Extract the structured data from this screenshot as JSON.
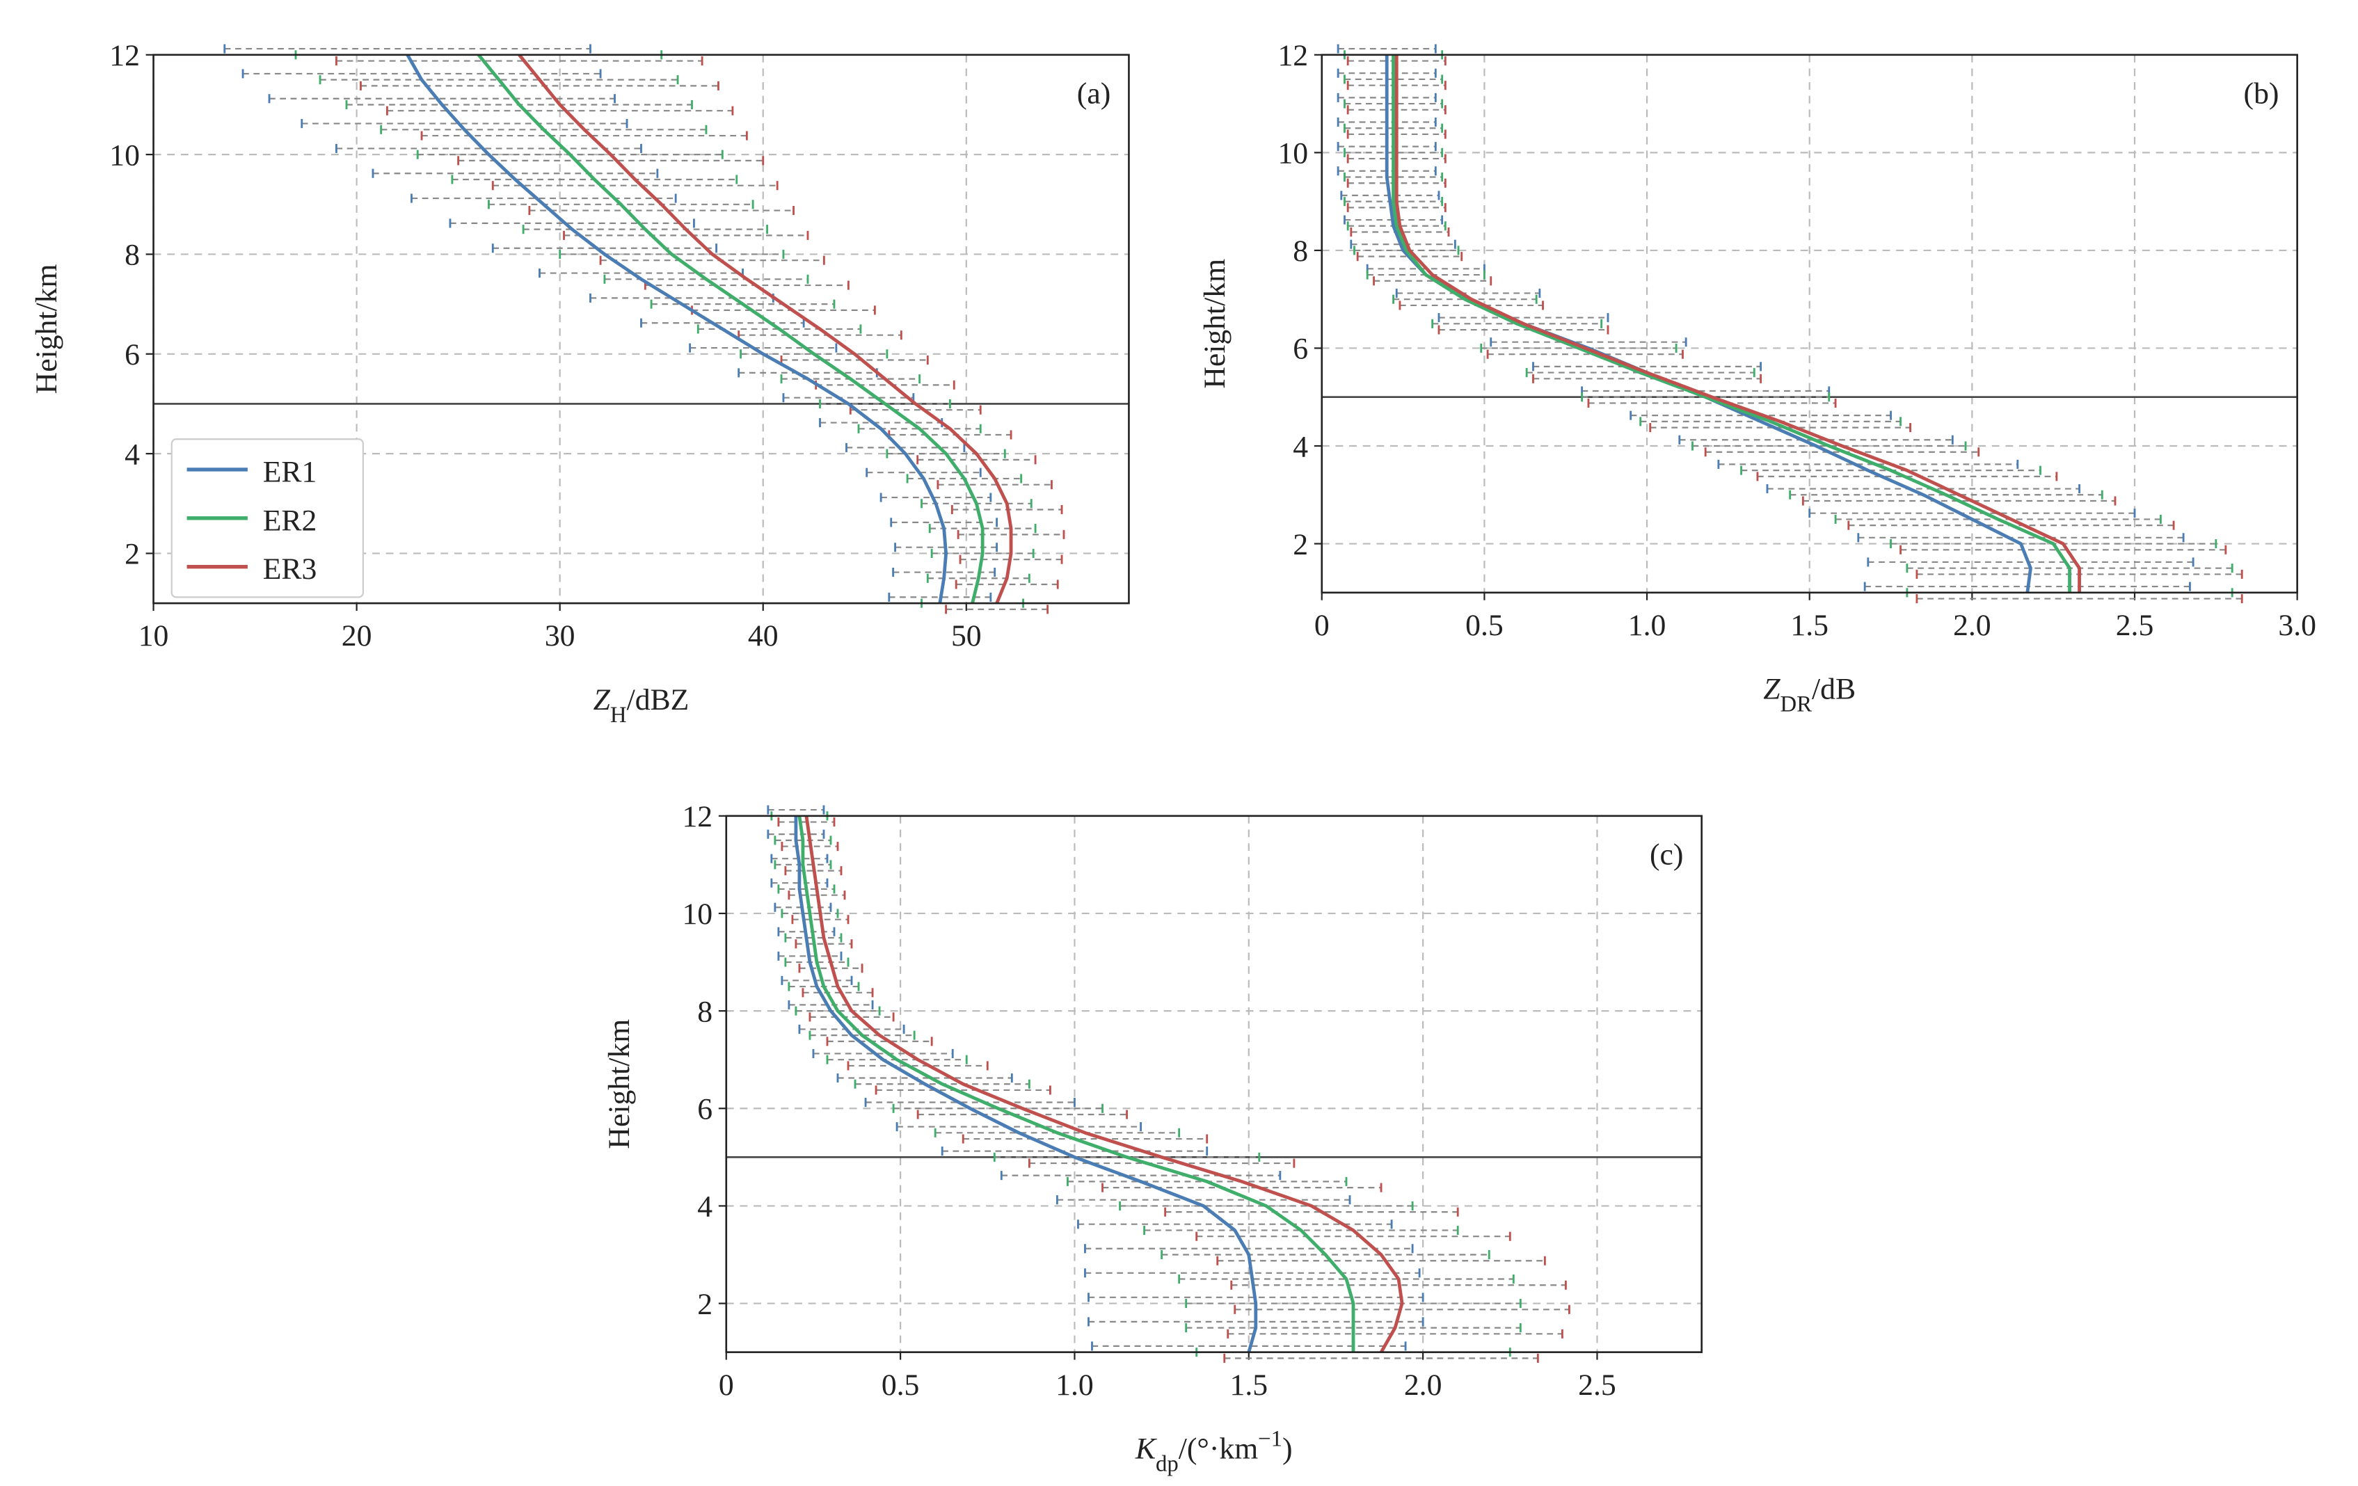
{
  "chart_data": [
    {
      "type": "line",
      "panel_label": "(a)",
      "xlabel": [
        {
          "text": "Z",
          "style": "italic"
        },
        {
          "text": "H",
          "style": "sub"
        },
        {
          "text": "/dBZ",
          "style": "normal"
        }
      ],
      "ylabel": "Height/km",
      "y": [
        1,
        1.5,
        2,
        2.5,
        3,
        3.5,
        4,
        4.5,
        5,
        5.5,
        6,
        6.5,
        7,
        7.5,
        8,
        8.5,
        9,
        9.5,
        10,
        10.5,
        11,
        11.5,
        12
      ],
      "series": [
        {
          "name": "ER1",
          "color": "#4b7db5",
          "values": [
            48.7,
            48.9,
            49,
            48.9,
            48.5,
            47.9,
            47,
            45.8,
            44.2,
            42.2,
            40,
            38,
            36,
            34,
            32.2,
            30.6,
            29.2,
            27.8,
            26.5,
            25.3,
            24.2,
            23.2,
            22.5
          ],
          "errors": [
            2.5,
            2.5,
            2.5,
            2.6,
            2.7,
            2.8,
            2.9,
            3,
            3.2,
            3.4,
            3.6,
            4,
            4.5,
            5,
            5.5,
            6,
            6.5,
            7,
            7.5,
            8,
            8.5,
            8.8,
            9
          ]
        },
        {
          "name": "ER2",
          "color": "#3fae6a",
          "values": [
            50.3,
            50.6,
            50.8,
            50.8,
            50.5,
            49.9,
            49,
            47.7,
            46,
            44.3,
            42.5,
            40.8,
            39,
            37.2,
            35.5,
            34.2,
            33,
            31.7,
            30.5,
            29.2,
            28,
            27,
            26
          ],
          "errors": [
            2.5,
            2.5,
            2.5,
            2.6,
            2.7,
            2.8,
            2.9,
            3,
            3.2,
            3.4,
            3.6,
            4,
            4.5,
            5,
            5.5,
            6,
            6.5,
            7,
            7.5,
            8,
            8.5,
            8.8,
            9
          ]
        },
        {
          "name": "ER3",
          "color": "#c0504d",
          "values": [
            51.5,
            52,
            52.2,
            52.2,
            52,
            51.4,
            50.5,
            49.2,
            47.5,
            46,
            44.5,
            42.8,
            41,
            39.2,
            37.5,
            36.2,
            35,
            33.7,
            32.5,
            31.2,
            30,
            29,
            28
          ],
          "errors": [
            2.5,
            2.5,
            2.5,
            2.6,
            2.7,
            2.8,
            2.9,
            3,
            3.2,
            3.4,
            3.6,
            4,
            4.5,
            5,
            5.5,
            6,
            6.5,
            7,
            7.5,
            8,
            8.5,
            8.8,
            9
          ]
        }
      ],
      "xlim": [
        10,
        58
      ],
      "xticks": [
        10,
        20,
        30,
        40,
        50
      ],
      "ylim": [
        1,
        12
      ],
      "yticks": [
        2,
        4,
        6,
        8,
        10,
        12
      ],
      "grid": true,
      "hline": 5,
      "legend": "lower left"
    },
    {
      "type": "line",
      "panel_label": "(b)",
      "xlabel": [
        {
          "text": "Z",
          "style": "italic"
        },
        {
          "text": "DR",
          "style": "sub"
        },
        {
          "text": "/dB",
          "style": "normal"
        }
      ],
      "ylabel": "Height/km",
      "y": [
        1,
        1.5,
        2,
        2.5,
        3,
        3.5,
        4,
        4.5,
        5,
        5.5,
        6,
        6.5,
        7,
        7.5,
        8,
        8.5,
        9,
        9.5,
        10,
        10.5,
        11,
        11.5,
        12
      ],
      "series": [
        {
          "color": "#4b7db5",
          "values": [
            2.17,
            2.18,
            2.15,
            2.0,
            1.85,
            1.68,
            1.52,
            1.35,
            1.18,
            1.0,
            0.82,
            0.62,
            0.45,
            0.32,
            0.25,
            0.22,
            0.21,
            0.2,
            0.2,
            0.2,
            0.2,
            0.2,
            0.2
          ],
          "errors": [
            0.5,
            0.5,
            0.5,
            0.5,
            0.48,
            0.46,
            0.42,
            0.4,
            0.38,
            0.35,
            0.3,
            0.26,
            0.22,
            0.18,
            0.16,
            0.15,
            0.15,
            0.15,
            0.15,
            0.15,
            0.15,
            0.15,
            0.15
          ]
        },
        {
          "color": "#3fae6a",
          "values": [
            2.3,
            2.3,
            2.25,
            2.08,
            1.92,
            1.75,
            1.56,
            1.38,
            1.18,
            0.98,
            0.79,
            0.6,
            0.44,
            0.32,
            0.26,
            0.23,
            0.22,
            0.22,
            0.22,
            0.22,
            0.22,
            0.22,
            0.22
          ],
          "errors": [
            0.5,
            0.5,
            0.5,
            0.5,
            0.48,
            0.46,
            0.42,
            0.4,
            0.38,
            0.35,
            0.3,
            0.26,
            0.22,
            0.18,
            0.16,
            0.15,
            0.15,
            0.15,
            0.15,
            0.15,
            0.15,
            0.15,
            0.15
          ]
        },
        {
          "color": "#c0504d",
          "values": [
            2.33,
            2.33,
            2.28,
            2.12,
            1.96,
            1.8,
            1.6,
            1.41,
            1.2,
            1.0,
            0.81,
            0.62,
            0.46,
            0.34,
            0.27,
            0.24,
            0.23,
            0.23,
            0.23,
            0.23,
            0.23,
            0.23,
            0.23
          ],
          "errors": [
            0.5,
            0.5,
            0.5,
            0.5,
            0.48,
            0.46,
            0.42,
            0.4,
            0.38,
            0.35,
            0.3,
            0.26,
            0.22,
            0.18,
            0.16,
            0.15,
            0.15,
            0.15,
            0.15,
            0.15,
            0.15,
            0.15,
            0.15
          ]
        }
      ],
      "xlim": [
        0,
        3
      ],
      "xticks": [
        0,
        0.5,
        {
          "value": 1,
          "label": "1.0"
        },
        1.5,
        {
          "value": 2,
          "label": "2.0"
        },
        2.5,
        {
          "value": 3,
          "label": "3.0"
        }
      ],
      "ylim": [
        1,
        12
      ],
      "yticks": [
        2,
        4,
        6,
        8,
        10,
        12
      ],
      "grid": true,
      "hline": 5
    },
    {
      "type": "line",
      "panel_label": "(c)",
      "xlabel": [
        {
          "text": "K",
          "style": "italic"
        },
        {
          "text": "dp",
          "style": "sub"
        },
        {
          "text": "/(°·km",
          "style": "normal"
        },
        {
          "text": "−1",
          "style": "sup"
        },
        {
          "text": ")",
          "style": "normal"
        }
      ],
      "ylabel": "Height/km",
      "y": [
        1,
        1.5,
        2,
        2.5,
        3,
        3.5,
        4,
        4.5,
        5,
        5.5,
        6,
        6.5,
        7,
        7.5,
        8,
        8.5,
        9,
        9.5,
        10,
        10.5,
        11,
        11.5,
        12
      ],
      "series": [
        {
          "color": "#4b7db5",
          "values": [
            1.5,
            1.52,
            1.52,
            1.51,
            1.5,
            1.46,
            1.37,
            1.19,
            1.0,
            0.84,
            0.7,
            0.57,
            0.45,
            0.36,
            0.3,
            0.26,
            0.24,
            0.23,
            0.22,
            0.21,
            0.21,
            0.2,
            0.2
          ],
          "errors": [
            0.45,
            0.48,
            0.48,
            0.48,
            0.47,
            0.45,
            0.42,
            0.4,
            0.38,
            0.35,
            0.3,
            0.25,
            0.2,
            0.15,
            0.12,
            0.1,
            0.09,
            0.08,
            0.08,
            0.08,
            0.08,
            0.08,
            0.08
          ]
        },
        {
          "color": "#3fae6a",
          "values": [
            1.8,
            1.8,
            1.8,
            1.78,
            1.72,
            1.65,
            1.55,
            1.38,
            1.15,
            0.95,
            0.78,
            0.62,
            0.49,
            0.39,
            0.32,
            0.28,
            0.26,
            0.25,
            0.24,
            0.23,
            0.22,
            0.22,
            0.21
          ],
          "errors": [
            0.45,
            0.48,
            0.48,
            0.48,
            0.47,
            0.45,
            0.42,
            0.4,
            0.38,
            0.35,
            0.3,
            0.25,
            0.2,
            0.15,
            0.12,
            0.1,
            0.09,
            0.08,
            0.08,
            0.08,
            0.08,
            0.08,
            0.08
          ]
        },
        {
          "color": "#c0504d",
          "values": [
            1.88,
            1.92,
            1.94,
            1.93,
            1.88,
            1.8,
            1.68,
            1.48,
            1.25,
            1.03,
            0.85,
            0.68,
            0.55,
            0.44,
            0.36,
            0.32,
            0.3,
            0.28,
            0.27,
            0.26,
            0.25,
            0.24,
            0.23
          ],
          "errors": [
            0.45,
            0.48,
            0.48,
            0.48,
            0.47,
            0.45,
            0.42,
            0.4,
            0.38,
            0.35,
            0.3,
            0.25,
            0.2,
            0.15,
            0.12,
            0.1,
            0.09,
            0.08,
            0.08,
            0.08,
            0.08,
            0.08,
            0.08
          ]
        }
      ],
      "xlim": [
        0,
        2.8
      ],
      "xticks": [
        0,
        0.5,
        {
          "value": 1,
          "label": "1.0"
        },
        1.5,
        {
          "value": 2,
          "label": "2.0"
        },
        2.5
      ],
      "ylim": [
        1,
        12
      ],
      "yticks": [
        2,
        4,
        6,
        8,
        10,
        12
      ],
      "grid": true,
      "hline": 5
    }
  ]
}
